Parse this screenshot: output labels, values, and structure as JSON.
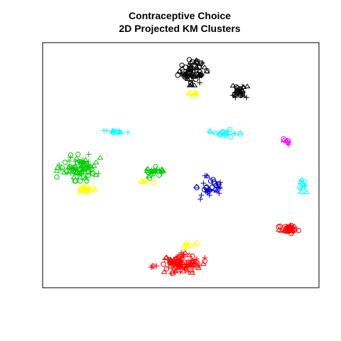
{
  "chart_data": {
    "type": "scatter",
    "title": "Contraceptive Choice",
    "subtitle": "2D Projected KM Clusters",
    "xlabel": "",
    "ylabel": "",
    "grid": false,
    "axes_visible": false,
    "xlim": [
      0,
      100
    ],
    "ylim": [
      0,
      100
    ],
    "marker_shapes": [
      "circle",
      "triangle",
      "plus"
    ],
    "clusters": [
      {
        "color": "#000000",
        "center": [
          54,
          88
        ],
        "spread": [
          4.5,
          4.5
        ],
        "n": 75
      },
      {
        "color": "#000000",
        "center": [
          71,
          80
        ],
        "spread": [
          2.5,
          2
        ],
        "n": 30
      },
      {
        "color": "#ffff00",
        "center": [
          55,
          79
        ],
        "spread": [
          2.5,
          1.2
        ],
        "n": 10
      },
      {
        "color": "#00ffff",
        "center": [
          26,
          64
        ],
        "spread": [
          4,
          1
        ],
        "n": 14
      },
      {
        "color": "#00ffff",
        "center": [
          66,
          63
        ],
        "spread": [
          4.5,
          1.5
        ],
        "n": 20
      },
      {
        "color": "#ff00ff",
        "center": [
          88.5,
          59.5
        ],
        "spread": [
          1.1,
          1.1
        ],
        "n": 8
      },
      {
        "color": "#00cc00",
        "center": [
          13,
          49
        ],
        "spread": [
          6.5,
          4.5
        ],
        "n": 85
      },
      {
        "color": "#00cc00",
        "center": [
          40,
          47
        ],
        "spread": [
          3,
          2.5
        ],
        "n": 28
      },
      {
        "color": "#ffff00",
        "center": [
          15,
          40
        ],
        "spread": [
          4,
          1.3
        ],
        "n": 22
      },
      {
        "color": "#ffff00",
        "center": [
          37,
          43
        ],
        "spread": [
          2.5,
          1
        ],
        "n": 6
      },
      {
        "color": "#0000cc",
        "center": [
          60,
          41
        ],
        "spread": [
          5,
          4
        ],
        "n": 35
      },
      {
        "color": "#00ffff",
        "center": [
          94,
          42
        ],
        "spread": [
          1.5,
          2.5
        ],
        "n": 12
      },
      {
        "color": "#ff0000",
        "center": [
          89,
          24
        ],
        "spread": [
          3,
          1.5
        ],
        "n": 40
      },
      {
        "color": "#ff0000",
        "center": [
          49,
          10
        ],
        "spread": [
          8,
          3.5
        ],
        "n": 110
      },
      {
        "color": "#ffff00",
        "center": [
          53,
          17
        ],
        "spread": [
          3,
          1.5
        ],
        "n": 8
      }
    ]
  }
}
